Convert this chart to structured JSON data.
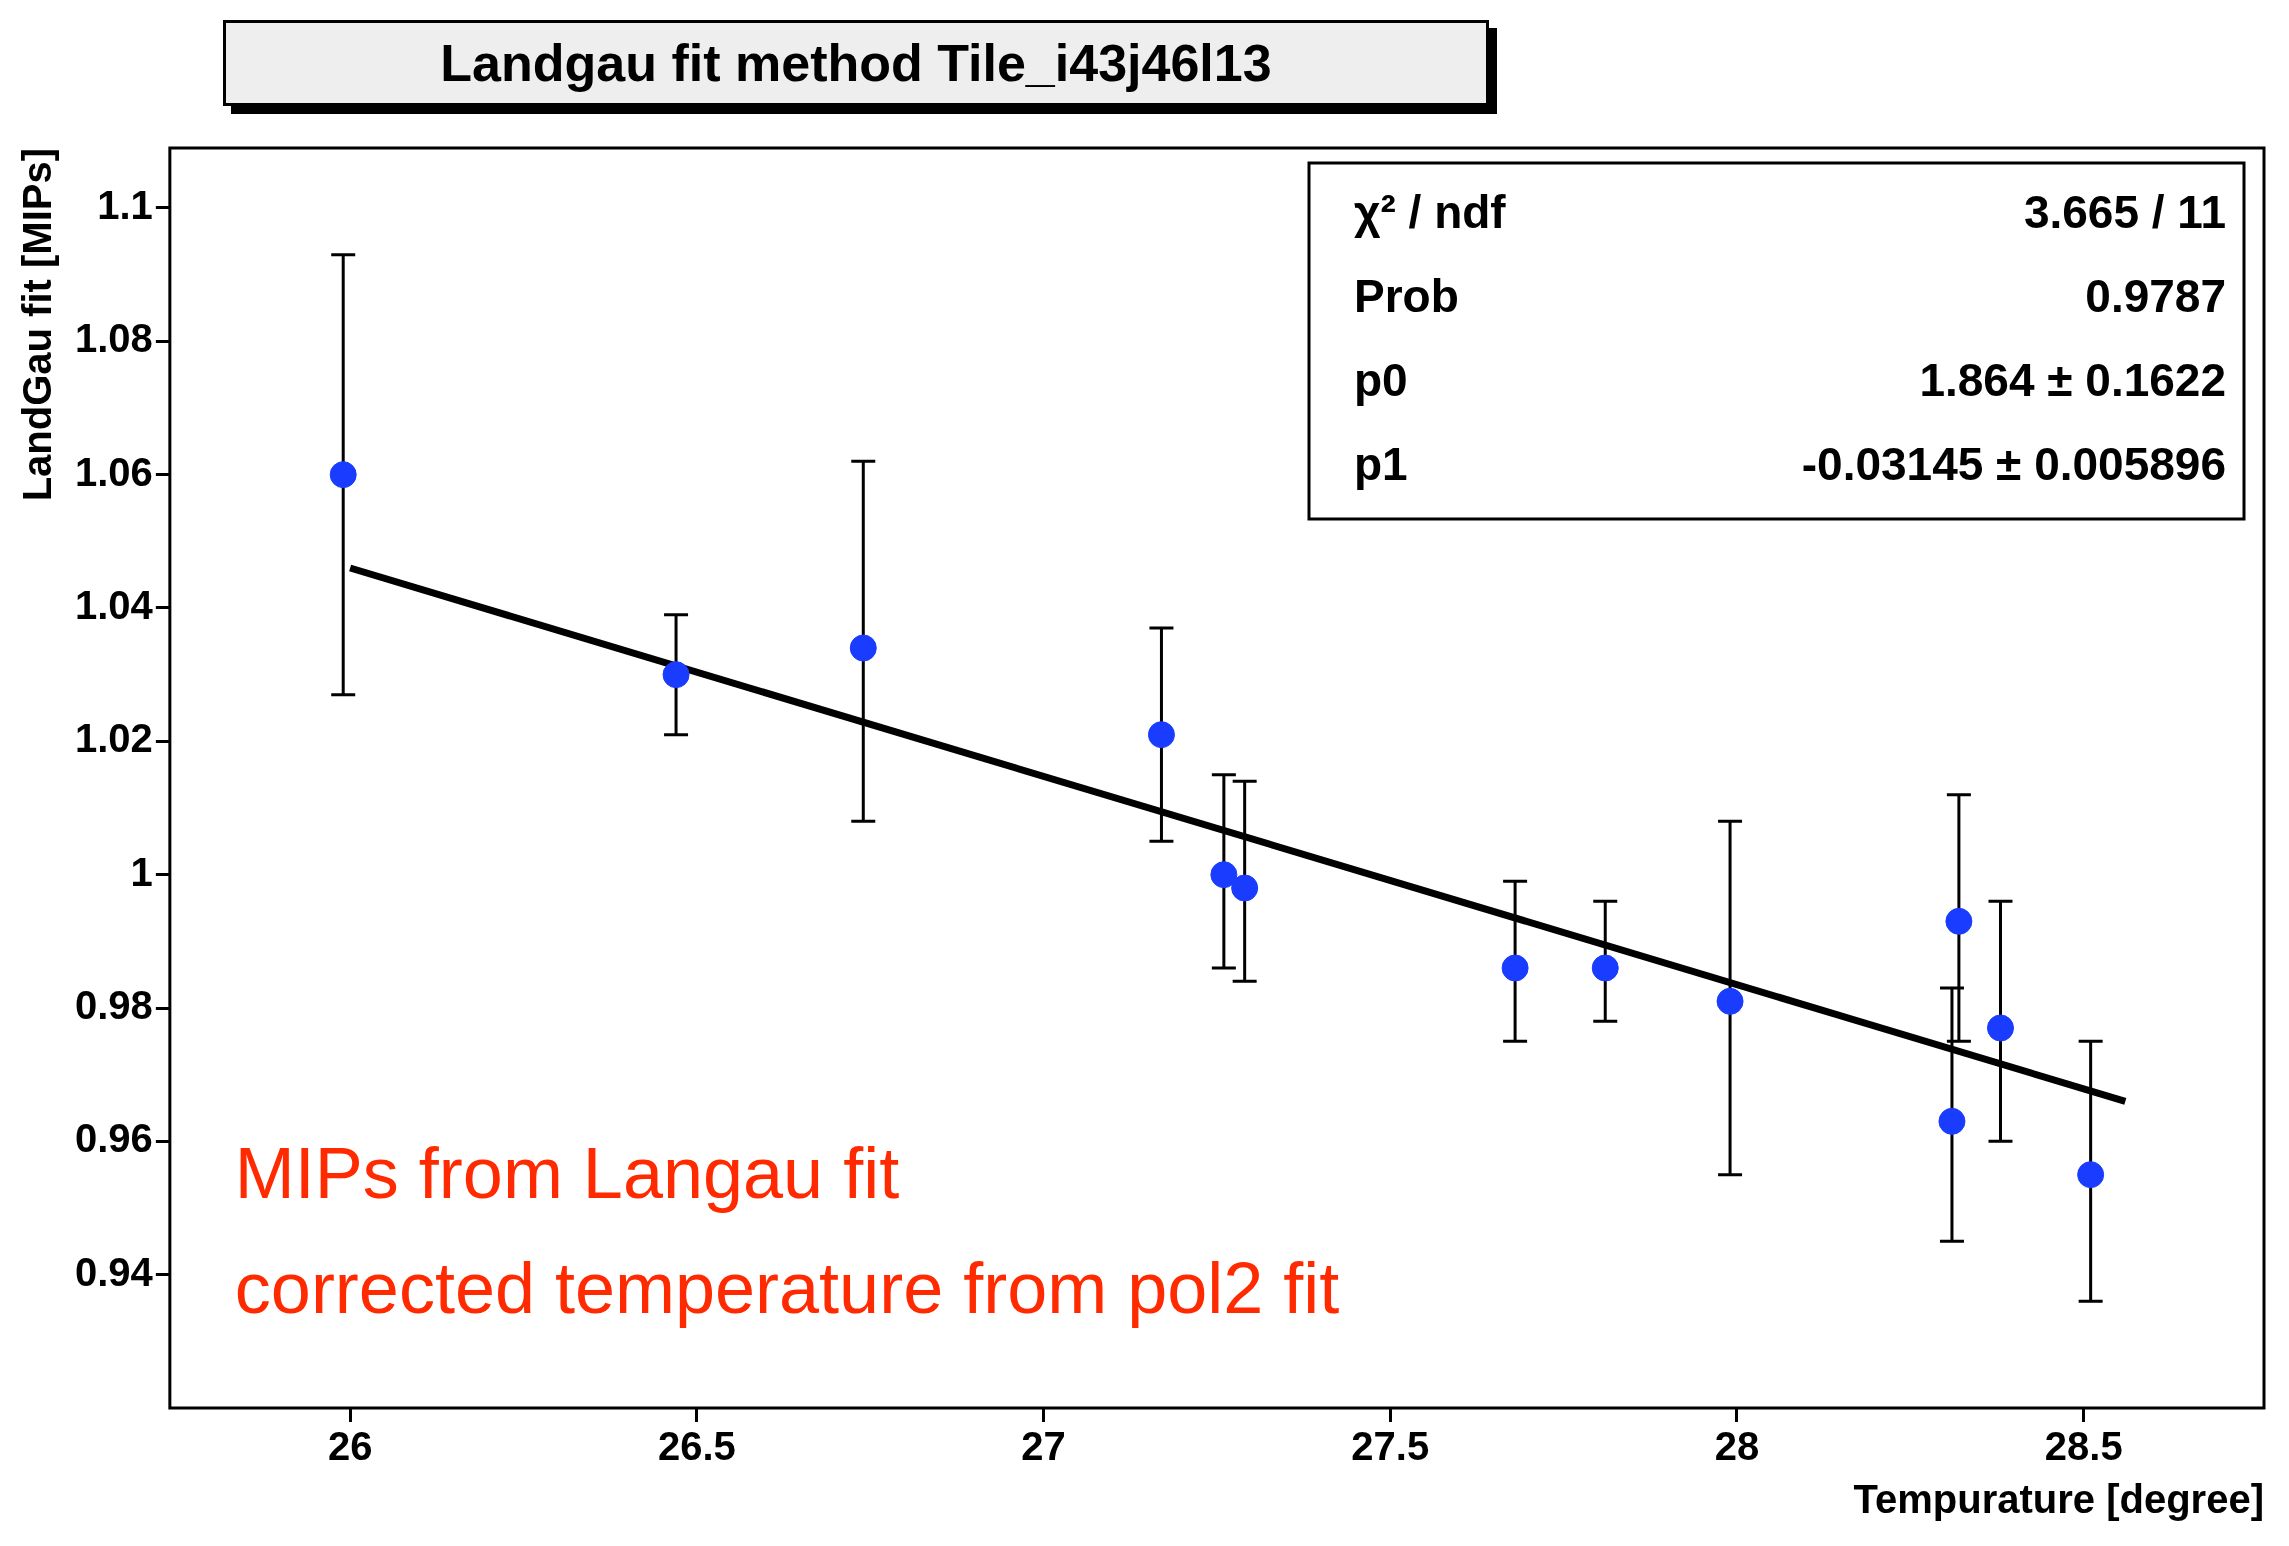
{
  "chart_data": {
    "type": "scatter",
    "title": "Landgau fit method Tile_i43j46l13",
    "xlabel": "Tempurature [degree]",
    "ylabel": "LandGau fit [MIPs]",
    "xlim": [
      25.74,
      28.76
    ],
    "xticks": [
      26,
      26.5,
      27,
      27.5,
      28,
      28.5
    ],
    "ylim": [
      0.92,
      1.109
    ],
    "yticks": [
      0.94,
      0.96,
      0.98,
      1,
      1.02,
      1.04,
      1.06,
      1.08,
      1.1
    ],
    "grid": false,
    "legend": false,
    "series": [
      {
        "marker": "circle",
        "color": "#1a3cff",
        "x": [
          25.99,
          26.47,
          26.74,
          27.17,
          27.26,
          27.29,
          27.68,
          27.81,
          27.99,
          28.31,
          28.32,
          28.38,
          28.51
        ],
        "values": [
          1.06,
          1.03,
          1.034,
          1.021,
          1.0,
          0.998,
          0.986,
          0.986,
          0.981,
          0.963,
          0.993,
          0.977,
          0.955
        ],
        "errors": [
          [
            1.027,
            1.093
          ],
          [
            1.021,
            1.039
          ],
          [
            1.008,
            1.062
          ],
          [
            1.005,
            1.037
          ],
          [
            0.986,
            1.015
          ],
          [
            0.984,
            1.014
          ],
          [
            0.975,
            0.999
          ],
          [
            0.978,
            0.996
          ],
          [
            0.955,
            1.008
          ],
          [
            0.945,
            0.983
          ],
          [
            0.975,
            1.012
          ],
          [
            0.96,
            0.996
          ],
          [
            0.936,
            0.975
          ]
        ]
      },
      {
        "type": "line",
        "color": "#000000",
        "x": [
          26,
          28.56
        ],
        "values": [
          1.046,
          0.966
        ]
      }
    ],
    "annotations": [
      "χ² / ndf",
      "3.665 / 11",
      "Prob",
      "0.9787",
      "p0",
      "1.864 ± 0.1622",
      "p1",
      "-0.03145 ± 0.005896",
      "MIPs from Langau fit",
      "corrected temperature from pol2 fit"
    ]
  }
}
